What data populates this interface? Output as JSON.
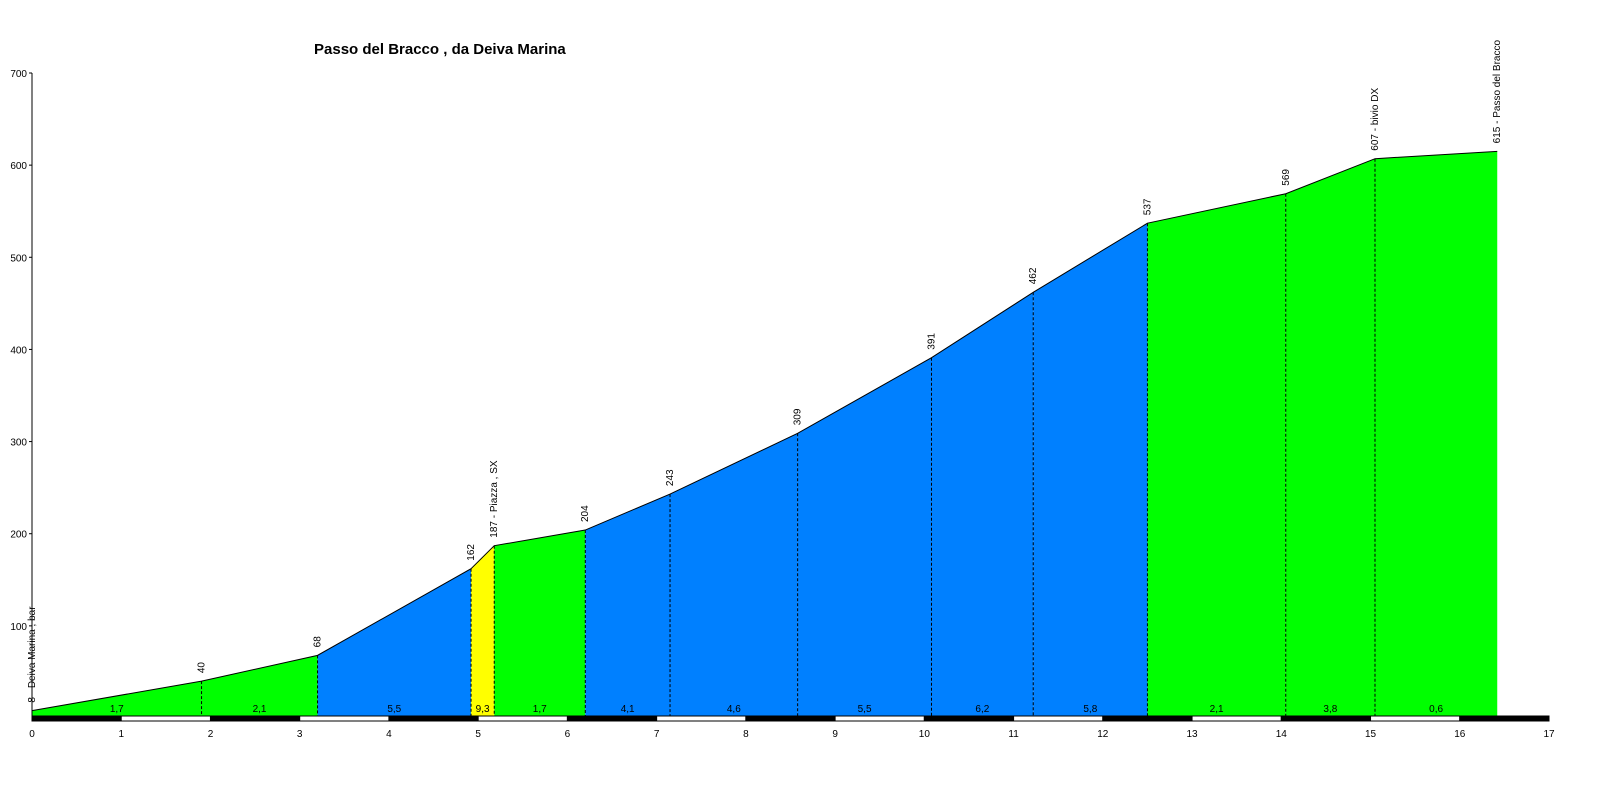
{
  "chart_data": {
    "type": "area",
    "title": "Passo del Bracco , da Deiva Marina",
    "xlim": [
      0,
      17
    ],
    "ylim": [
      0,
      700
    ],
    "x_ticks": [
      "0",
      "1",
      "2",
      "3",
      "4",
      "5",
      "6",
      "7",
      "8",
      "9",
      "10",
      "11",
      "12",
      "13",
      "14",
      "15",
      "16",
      "17"
    ],
    "y_ticks": [
      "100",
      "200",
      "300",
      "400",
      "500",
      "600",
      "700"
    ],
    "points": [
      {
        "x": 0,
        "y": 8,
        "label": "8 - Deiva Marina , bar"
      },
      {
        "x": 1.9,
        "y": 40,
        "label": "40"
      },
      {
        "x": 3.2,
        "y": 68,
        "label": "68"
      },
      {
        "x": 4.92,
        "y": 162,
        "label": "162"
      },
      {
        "x": 5.18,
        "y": 187,
        "label": "187 - Piazza , SX"
      },
      {
        "x": 6.2,
        "y": 204,
        "label": "204"
      },
      {
        "x": 7.15,
        "y": 243,
        "label": "243"
      },
      {
        "x": 8.58,
        "y": 309,
        "label": "309"
      },
      {
        "x": 10.08,
        "y": 391,
        "label": "391"
      },
      {
        "x": 11.22,
        "y": 462,
        "label": "462"
      },
      {
        "x": 12.5,
        "y": 537,
        "label": "537"
      },
      {
        "x": 14.05,
        "y": 569,
        "label": "569"
      },
      {
        "x": 15.05,
        "y": 607,
        "label": "607 - bivio DX"
      },
      {
        "x": 16.42,
        "y": 615,
        "label": "615 - Passo del Bracco"
      }
    ],
    "segments": [
      {
        "grade": "1,7",
        "color": "#00ff00"
      },
      {
        "grade": "2,1",
        "color": "#00ff00"
      },
      {
        "grade": "5,5",
        "color": "#0080ff"
      },
      {
        "grade": "9,3",
        "color": "#ffff00"
      },
      {
        "grade": "1,7",
        "color": "#00ff00"
      },
      {
        "grade": "4,1",
        "color": "#0080ff"
      },
      {
        "grade": "4,6",
        "color": "#0080ff"
      },
      {
        "grade": "5,5",
        "color": "#0080ff"
      },
      {
        "grade": "6,2",
        "color": "#0080ff"
      },
      {
        "grade": "5,8",
        "color": "#0080ff"
      },
      {
        "grade": "2,1",
        "color": "#00ff00"
      },
      {
        "grade": "3,8",
        "color": "#00ff00"
      },
      {
        "grade": "0,6",
        "color": "#00ff00"
      }
    ]
  }
}
